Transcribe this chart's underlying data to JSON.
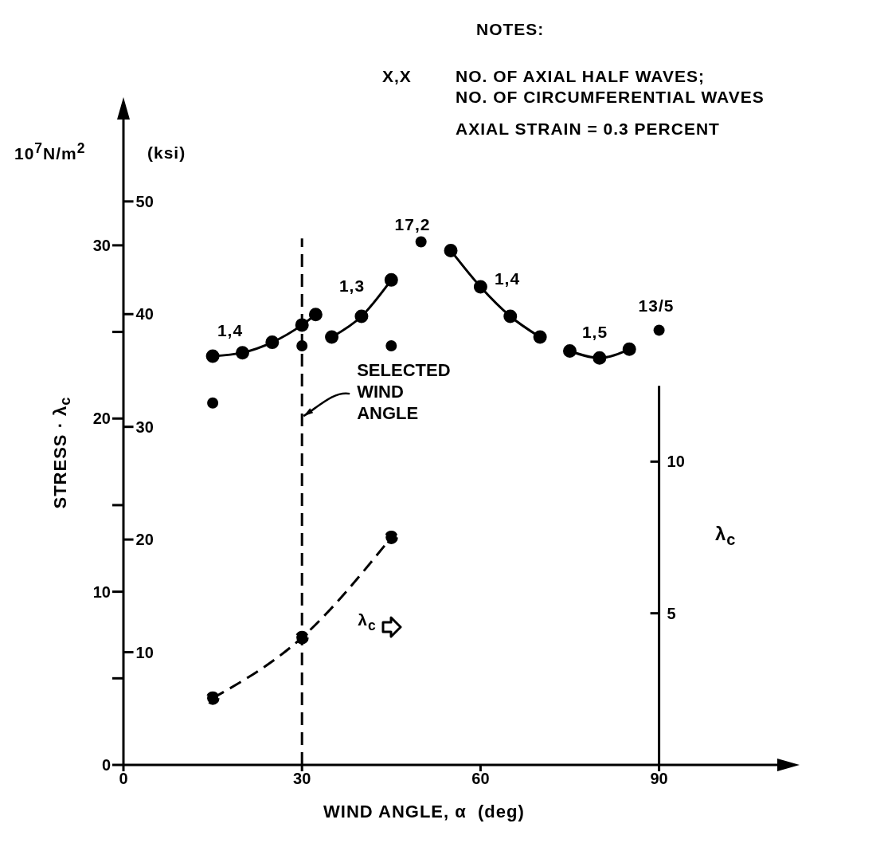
{
  "chart_data": {
    "type": "line",
    "xlabel": "WIND ANGLE, α  (deg)",
    "ylabel": "STRESS · λ$_{c}$",
    "y2label": "(ksi)",
    "y3label": "λ$_{c}$",
    "xlim": [
      0,
      112
    ],
    "xticks": [
      0,
      30,
      60,
      90
    ],
    "ylim": [
      0,
      38
    ],
    "yticks": [
      0,
      {
        "value": 5,
        "label": null
      },
      10,
      {
        "value": 15,
        "label": null
      },
      20,
      {
        "value": 25,
        "label": null
      },
      30
    ],
    "y2lim": [
      0,
      58.4
    ],
    "y2ticks": [
      10,
      20,
      30,
      40,
      50
    ],
    "y3lim": [
      0,
      21.7
    ],
    "y3ticks": [
      5,
      10
    ],
    "marker": "circle",
    "line_style": "solid",
    "series": [
      {
        "type": "line",
        "color": "#000000",
        "x": [
          15,
          20,
          25,
          30,
          32.3
        ],
        "values": [
          23.6,
          23.8,
          24.4,
          25.4,
          26.0
        ]
      },
      {
        "type": "line",
        "color": "#000000",
        "x": [
          35,
          40,
          45
        ],
        "values": [
          24.7,
          25.9,
          28.0
        ]
      },
      {
        "type": "scatter",
        "color": "#000000",
        "x": [
          50,
          90
        ],
        "values": [
          30.2,
          25.1
        ]
      },
      {
        "type": "line",
        "color": "#000000",
        "x": [
          55,
          60,
          65,
          70
        ],
        "values": [
          29.7,
          27.6,
          25.9,
          24.7
        ]
      },
      {
        "type": "line",
        "color": "#000000",
        "x": [
          75,
          80,
          85
        ],
        "values": [
          23.9,
          23.5,
          24.0
        ]
      },
      {
        "type": "scatter",
        "color": "#000000",
        "x": [
          15,
          30,
          45
        ],
        "values": [
          20.9,
          24.2,
          24.2
        ]
      },
      {
        "type": "line",
        "color": "#000000",
        "axis": "y3",
        "line_style": "dashed",
        "x": [
          15,
          30,
          45
        ],
        "values": [
          2.2,
          4.2,
          7.5
        ]
      }
    ],
    "ref_lines": [
      {
        "axis": "x",
        "value": 30,
        "label": "SELECTED WIND ANGLE",
        "line_style": "dashed",
        "color": "#000000"
      }
    ],
    "annotations": [
      "10$^{7}$N/m$^{2}$",
      "NOTES:",
      "X,X",
      "NO. OF AXIAL HALF WAVES;",
      "NO. OF CIRCUMFERENTIAL WAVES",
      "AXIAL STRAIN = 0.3 PERCENT",
      "1,4",
      "1,3",
      "17,2",
      "1,4",
      "1,5",
      "13/5",
      "λ$_{c}$"
    ]
  }
}
